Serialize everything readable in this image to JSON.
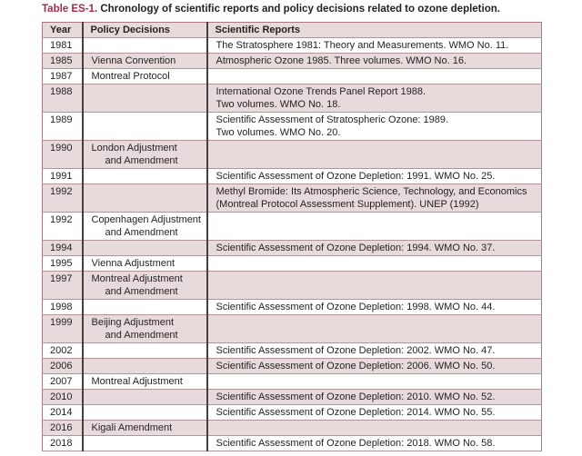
{
  "title": {
    "label": "Table ES-1.",
    "text": "Chronology of scientific reports and policy decisions related to ozone depletion."
  },
  "colors": {
    "title_accent": "#a12c4c",
    "header_bg": "#e7dadb",
    "shaded_row_bg": "#e7dadb",
    "outer_border": "#a57a80",
    "row_divider": "#b2939a",
    "column_divider": "#463d3f",
    "text": "#231f20"
  },
  "table": {
    "columns": [
      "Year",
      "Policy Decisions",
      "Scientific Reports"
    ],
    "rows": [
      {
        "year": "1981",
        "policy": [],
        "reports": [
          "The Stratosphere 1981: Theory and Measurements. WMO No. 11."
        ],
        "shaded": false
      },
      {
        "year": "1985",
        "policy": [
          "Vienna Convention"
        ],
        "reports": [
          "Atmospheric Ozone 1985. Three volumes. WMO No. 16."
        ],
        "shaded": true
      },
      {
        "year": "1987",
        "policy": [
          "Montreal Protocol"
        ],
        "reports": [],
        "shaded": false
      },
      {
        "year": "1988",
        "policy": [],
        "reports": [
          "International Ozone Trends Panel Report 1988.",
          "Two volumes. WMO No. 18."
        ],
        "shaded": true
      },
      {
        "year": "1989",
        "policy": [],
        "reports": [
          "Scientific Assessment of Stratospheric Ozone: 1989.",
          "Two volumes. WMO No. 20."
        ],
        "shaded": false
      },
      {
        "year": "1990",
        "policy": [
          "London Adjustment",
          "and Amendment"
        ],
        "reports": [],
        "shaded": true
      },
      {
        "year": "1991",
        "policy": [],
        "reports": [
          "Scientific Assessment of Ozone Depletion: 1991. WMO No. 25."
        ],
        "shaded": false
      },
      {
        "year": "1992",
        "policy": [],
        "reports": [
          "Methyl Bromide: Its Atmospheric Science, Technology, and Economics",
          "(Montreal Protocol Assessment Supplement). UNEP (1992)"
        ],
        "shaded": true
      },
      {
        "year": "1992",
        "policy": [
          "Copenhagen Adjustment",
          "and Amendment"
        ],
        "reports": [],
        "shaded": false
      },
      {
        "year": "1994",
        "policy": [],
        "reports": [
          "Scientific Assessment of Ozone Depletion: 1994. WMO No. 37."
        ],
        "shaded": true
      },
      {
        "year": "1995",
        "policy": [
          "Vienna Adjustment"
        ],
        "reports": [],
        "shaded": false
      },
      {
        "year": "1997",
        "policy": [
          "Montreal Adjustment",
          "and Amendment"
        ],
        "reports": [],
        "shaded": true
      },
      {
        "year": "1998",
        "policy": [],
        "reports": [
          "Scientific Assessment of Ozone Depletion: 1998. WMO No. 44."
        ],
        "shaded": false
      },
      {
        "year": "1999",
        "policy": [
          "Beijing Adjustment",
          "and Amendment"
        ],
        "reports": [],
        "shaded": true
      },
      {
        "year": "2002",
        "policy": [],
        "reports": [
          "Scientific Assessment of Ozone Depletion: 2002. WMO No. 47."
        ],
        "shaded": false
      },
      {
        "year": "2006",
        "policy": [],
        "reports": [
          "Scientific Assessment of Ozone Depletion: 2006. WMO No. 50."
        ],
        "shaded": true
      },
      {
        "year": "2007",
        "policy": [
          "Montreal Adjustment"
        ],
        "reports": [],
        "shaded": false
      },
      {
        "year": "2010",
        "policy": [],
        "reports": [
          "Scientific Assessment of Ozone Depletion: 2010. WMO No. 52."
        ],
        "shaded": true
      },
      {
        "year": "2014",
        "policy": [],
        "reports": [
          "Scientific Assessment of Ozone Depletion: 2014. WMO No. 55."
        ],
        "shaded": false
      },
      {
        "year": "2016",
        "policy": [
          "Kigali Amendment"
        ],
        "reports": [],
        "shaded": true
      },
      {
        "year": "2018",
        "policy": [],
        "reports": [
          "Scientific Assessment of Ozone Depletion: 2018. WMO No. 58."
        ],
        "shaded": false
      }
    ]
  }
}
